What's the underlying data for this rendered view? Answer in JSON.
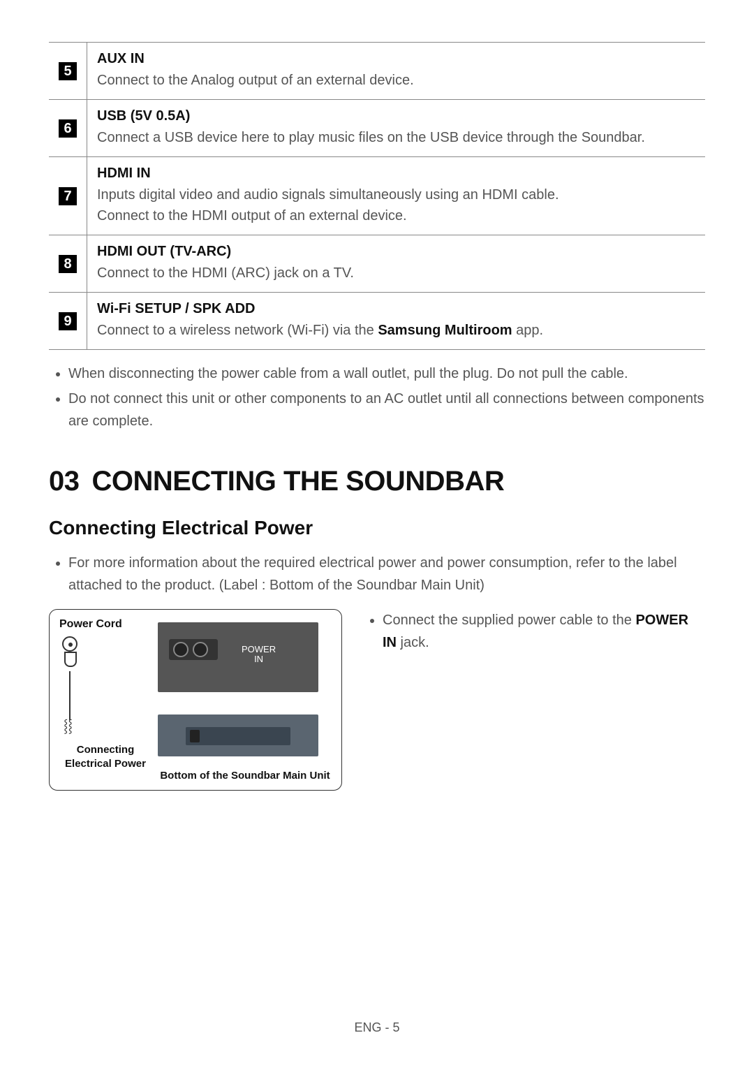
{
  "ports": [
    {
      "num": "5",
      "title": "AUX IN",
      "desc": "Connect to the Analog output of an external device."
    },
    {
      "num": "6",
      "title": "USB (5V 0.5A)",
      "desc": "Connect a USB device here to play music files on the USB device through the Soundbar."
    },
    {
      "num": "7",
      "title": "HDMI IN",
      "desc": "Inputs digital video and audio signals simultaneously using an HDMI cable.\nConnect to the HDMI output of an external device."
    },
    {
      "num": "8",
      "title": "HDMI OUT (TV-ARC)",
      "desc": "Connect to the HDMI (ARC) jack on a TV."
    },
    {
      "num": "9",
      "title": "Wi-Fi SETUP / SPK ADD",
      "desc_pre": "Connect to a wireless network (Wi-Fi) via the ",
      "desc_bold": "Samsung Multiroom",
      "desc_post": " app."
    }
  ],
  "warnings": [
    "When disconnecting the power cable from a wall outlet, pull the plug. Do not pull the cable.",
    "Do not connect this unit or other components to an AC outlet until all connections between components are complete."
  ],
  "section": {
    "num": "03",
    "title": "CONNECTING THE SOUNDBAR"
  },
  "subsection": {
    "title": "Connecting Electrical Power",
    "intro": "For more information about the required electrical power and power consumption, refer to the label attached to the product. (Label : Bottom of the Soundbar Main Unit)"
  },
  "diagram": {
    "power_cord": "Power Cord",
    "power_in": "POWER\nIN",
    "connecting": "Connecting\nElectrical Power",
    "bottom_label": "Bottom of the Soundbar Main Unit"
  },
  "right_instruction": {
    "pre": "Connect the supplied power cable to the ",
    "bold": "POWER IN",
    "post": " jack."
  },
  "footer": "ENG - 5"
}
